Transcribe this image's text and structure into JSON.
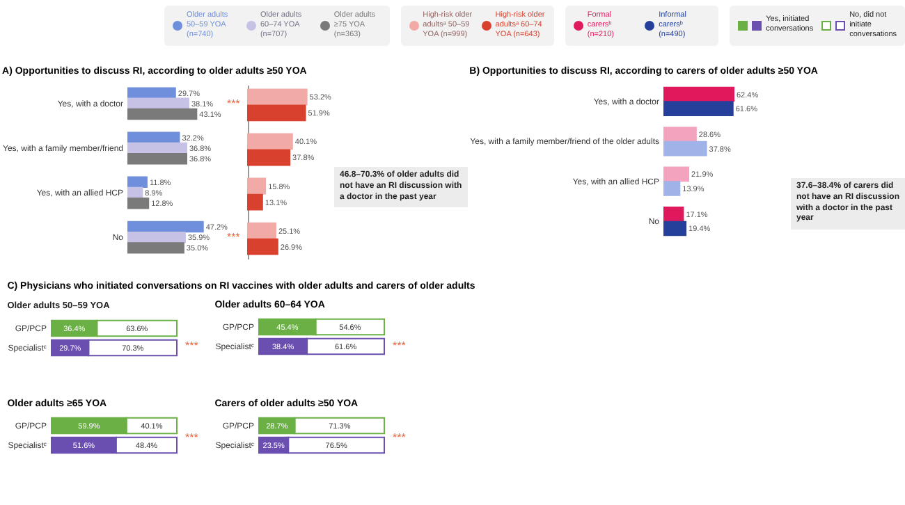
{
  "chart_data": [
    {
      "type": "bar",
      "orientation": "horizontal",
      "title": "A) Opportunities to discuss RI, according to older adults ≥50 YOA",
      "legend": "top",
      "categories": [
        "Yes, with a doctor",
        "Yes, with a family member/friend",
        "Yes, with an allied HCP",
        "No"
      ],
      "series": [
        {
          "name": "Older adults 50–59 YOA (n=740)",
          "color": "#6f8fdc",
          "values": [
            29.7,
            32.2,
            11.8,
            47.2
          ],
          "value_labels": [
            "29.7%",
            "32.2%",
            "11.8%",
            "47.2%"
          ]
        },
        {
          "name": "Older adults 60–74 YOA (n=707)",
          "color": "#c5c2e6",
          "values": [
            38.1,
            36.8,
            8.9,
            35.9
          ],
          "value_labels": [
            "38.1%",
            "36.8%",
            "8.9%",
            "35.9%"
          ]
        },
        {
          "name": "Older adults ≥75 YOA (n=363)",
          "color": "#7a7a7a",
          "values": [
            43.1,
            36.8,
            12.8,
            35.0
          ],
          "value_labels": [
            "43.1%",
            "36.8%",
            "12.8%",
            "35.0%"
          ]
        }
      ],
      "annotations": [
        "***",
        "***"
      ]
    },
    {
      "type": "bar",
      "orientation": "horizontal",
      "legend": "top",
      "tick_labels": false,
      "categories": [
        null,
        null,
        null,
        null
      ],
      "series": [
        {
          "name": "High-risk older adultsᵃ 50–59 YOA (n=999)",
          "color": "#f2aaa6",
          "values": [
            53.2,
            40.1,
            15.8,
            25.1
          ],
          "value_labels": [
            "53.2%",
            "40.1%",
            "15.8%",
            "25.1%"
          ]
        },
        {
          "name": "High-risk older adultsᵃ 60–74 YOA (n=643)",
          "color": "#d9412f",
          "values": [
            51.9,
            37.8,
            13.1,
            26.9
          ],
          "value_labels": [
            "51.9%",
            "37.8%",
            "13.1%",
            "26.9%"
          ]
        }
      ],
      "annotations": [
        "46.8–70.3% of older adults did not have an RI discussion with a doctor in the past year"
      ]
    },
    {
      "type": "bar",
      "orientation": "horizontal",
      "title": "B) Opportunities to discuss RI, according to carers of older adults ≥50 YOA",
      "legend": "top",
      "categories": [
        "Yes, with a doctor",
        "Yes, with a family member/friend of the older adults",
        "Yes, with an allied HCP",
        "No"
      ],
      "series": [
        {
          "name": "Formal carersᵇ (n=210)",
          "color": "#e0195d",
          "colors": [
            "#e0195d",
            "#f4a3bf",
            "#f4a3bf",
            "#e0195d"
          ],
          "values": [
            62.4,
            28.6,
            21.9,
            17.1
          ],
          "value_labels": [
            "62.4%",
            "28.6%",
            "21.9%",
            "17.1%"
          ]
        },
        {
          "name": "Informal carersᵇ (n=490)",
          "color": "#24409a",
          "colors": [
            "#24409a",
            "#9fb3e8",
            "#9fb3e8",
            "#24409a"
          ],
          "values": [
            61.6,
            37.8,
            13.9,
            19.4
          ],
          "value_labels": [
            "61.6%",
            "37.8%",
            "13.9%",
            "19.4%"
          ]
        }
      ],
      "annotations": [
        "37.6–38.4% of carers did not have an RI discussion with a doctor in the past year"
      ]
    },
    {
      "type": "bar",
      "orientation": "horizontal",
      "stacked": true,
      "title": "C) Physicians who initiated conversations on RI vaccines with older adults and carers of older adults",
      "subtitle": "Older adults 50–59 YOA",
      "legend": "top",
      "categories": [
        "GP/PCP",
        "Specialistᶜ"
      ],
      "series": [
        {
          "name": "Yes, initiated conversations",
          "colors": [
            "#6ab045",
            "#6a4fb0"
          ],
          "values": [
            36.4,
            29.7
          ],
          "value_labels": [
            "36.4%",
            "29.7%"
          ]
        },
        {
          "name": "No, did not initiate conversations",
          "colors": [
            "#ffffff",
            "#ffffff"
          ],
          "values": [
            63.6,
            70.3
          ],
          "value_labels": [
            "63.6%",
            "70.3%"
          ]
        }
      ],
      "annotations": [
        "***"
      ]
    },
    {
      "type": "bar",
      "orientation": "horizontal",
      "stacked": true,
      "title": "Older adults 60–64 YOA",
      "categories": [
        "GP/PCP",
        "Specialistᶜ"
      ],
      "series": [
        {
          "colors": [
            "#6ab045",
            "#6a4fb0"
          ],
          "values": [
            45.4,
            38.4
          ],
          "value_labels": [
            "45.4%",
            "38.4%"
          ]
        },
        {
          "colors": [
            "#ffffff",
            "#ffffff"
          ],
          "values": [
            54.6,
            61.6
          ],
          "value_labels": [
            "54.6%",
            "61.6%"
          ]
        }
      ],
      "annotations": [
        "***"
      ]
    },
    {
      "type": "bar",
      "orientation": "horizontal",
      "stacked": true,
      "title": "Older adults ≥65 YOA",
      "categories": [
        "GP/PCP",
        "Specialistᶜ"
      ],
      "series": [
        {
          "colors": [
            "#6ab045",
            "#6a4fb0"
          ],
          "values": [
            59.9,
            51.6
          ],
          "value_labels": [
            "59.9%",
            "51.6%"
          ]
        },
        {
          "colors": [
            "#ffffff",
            "#ffffff"
          ],
          "values": [
            40.1,
            48.4
          ],
          "value_labels": [
            "40.1%",
            "48.4%"
          ]
        }
      ],
      "annotations": [
        "***"
      ]
    },
    {
      "type": "bar",
      "orientation": "horizontal",
      "stacked": true,
      "title": "Carers of older adults ≥50 YOA",
      "categories": [
        "GP/PCP",
        "Specialistᶜ"
      ],
      "series": [
        {
          "colors": [
            "#6ab045",
            "#6a4fb0"
          ],
          "values": [
            28.7,
            23.5
          ],
          "value_labels": [
            "28.7%",
            "23.5%"
          ]
        },
        {
          "colors": [
            "#ffffff",
            "#ffffff"
          ],
          "values": [
            71.3,
            76.5
          ],
          "value_labels": [
            "71.3%",
            "76.5%"
          ]
        }
      ],
      "annotations": [
        "***"
      ]
    }
  ]
}
